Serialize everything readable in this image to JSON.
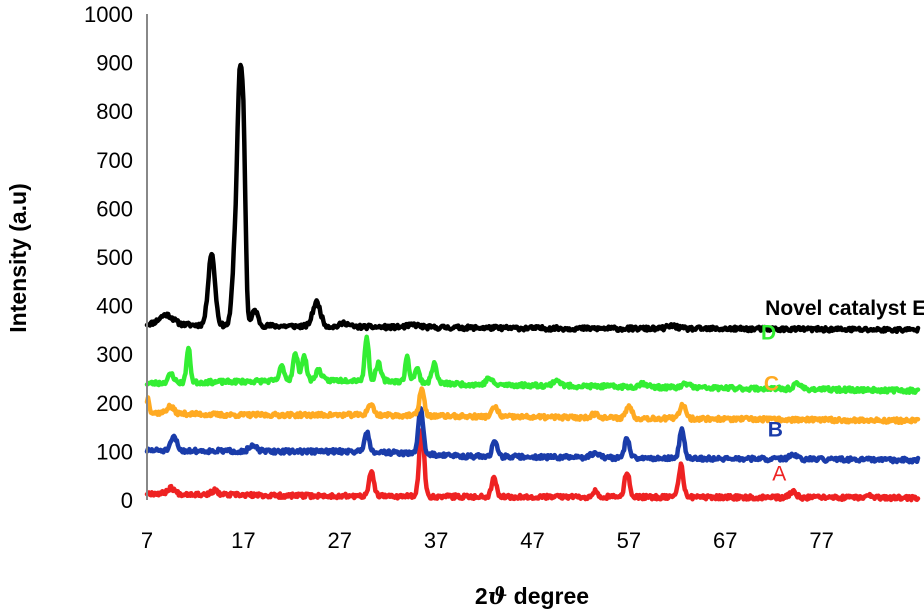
{
  "chart_data": {
    "type": "line",
    "xlabel_prefix": "2",
    "xlabel_symbol": "ϑ",
    "xlabel_suffix": " degree",
    "ylabel": "Intensity (a.u)",
    "xlim": [
      7,
      87
    ],
    "ylim": [
      0,
      1000
    ],
    "xticks": [
      7,
      17,
      27,
      37,
      47,
      57,
      67,
      77
    ],
    "yticks": [
      0,
      100,
      200,
      300,
      400,
      500,
      600,
      700,
      800,
      900,
      1000
    ],
    "grid": false,
    "series": [
      {
        "name": "Novel catalyst E",
        "color": "#000000",
        "label_bold": true,
        "label_at": [
          79.5,
          395
        ],
        "baseline": [
          [
            7,
            362
          ],
          [
            12,
            360
          ],
          [
            30,
            356
          ],
          [
            50,
            353
          ],
          [
            70,
            352
          ],
          [
            87,
            350
          ]
        ],
        "peaks": [
          [
            9.0,
            20,
            0.7
          ],
          [
            13.7,
            148,
            0.35
          ],
          [
            16.2,
            180,
            0.3
          ],
          [
            16.6,
            375,
            0.22
          ],
          [
            17.0,
            385,
            0.22
          ],
          [
            18.2,
            32,
            0.3
          ],
          [
            24.6,
            50,
            0.4
          ],
          [
            27.5,
            8,
            0.4
          ],
          [
            34.7,
            5,
            0.6
          ],
          [
            61.5,
            6,
            0.5
          ]
        ],
        "seed": 11
      },
      {
        "name": "D",
        "color": "#33ee33",
        "label_bold": true,
        "label_at": [
          71.5,
          345
        ],
        "baseline": [
          [
            7,
            240
          ],
          [
            20,
            245
          ],
          [
            30,
            247
          ],
          [
            40,
            238
          ],
          [
            60,
            232
          ],
          [
            87,
            225
          ]
        ],
        "peaks": [
          [
            9.5,
            18,
            0.3
          ],
          [
            11.3,
            70,
            0.2
          ],
          [
            21.0,
            30,
            0.25
          ],
          [
            22.4,
            55,
            0.25
          ],
          [
            23.3,
            50,
            0.25
          ],
          [
            24.8,
            22,
            0.3
          ],
          [
            29.8,
            90,
            0.2
          ],
          [
            31.0,
            35,
            0.25
          ],
          [
            34.0,
            50,
            0.2
          ],
          [
            35.0,
            28,
            0.25
          ],
          [
            36.8,
            40,
            0.25
          ],
          [
            42.5,
            14,
            0.3
          ],
          [
            49.5,
            12,
            0.35
          ],
          [
            58.5,
            8,
            0.4
          ],
          [
            63.0,
            8,
            0.4
          ],
          [
            74.5,
            10,
            0.4
          ]
        ],
        "seed": 23
      },
      {
        "name": "C",
        "color": "#ffaa22",
        "label_bold": true,
        "label_at": [
          71.8,
          240
        ],
        "baseline": [
          [
            7,
            180
          ],
          [
            15,
            175
          ],
          [
            30,
            175
          ],
          [
            40,
            172
          ],
          [
            60,
            168
          ],
          [
            87,
            163
          ]
        ],
        "peaks": [
          [
            7.1,
            30,
            0.15
          ],
          [
            9.4,
            14,
            0.35
          ],
          [
            30.2,
            22,
            0.3
          ],
          [
            35.5,
            55,
            0.25
          ],
          [
            43.1,
            20,
            0.3
          ],
          [
            53.5,
            8,
            0.4
          ],
          [
            57.0,
            25,
            0.3
          ],
          [
            62.6,
            30,
            0.3
          ]
        ],
        "seed": 37
      },
      {
        "name": "B",
        "color": "#1a3caa",
        "label_bold": true,
        "label_at": [
          72.2,
          145
        ],
        "baseline": [
          [
            7,
            102
          ],
          [
            20,
            100
          ],
          [
            30,
            100
          ],
          [
            40,
            90
          ],
          [
            60,
            86
          ],
          [
            87,
            82
          ]
        ],
        "peaks": [
          [
            9.8,
            28,
            0.3
          ],
          [
            18.0,
            10,
            0.4
          ],
          [
            29.8,
            40,
            0.25
          ],
          [
            35.4,
            95,
            0.25
          ],
          [
            43.1,
            35,
            0.25
          ],
          [
            53.5,
            10,
            0.4
          ],
          [
            56.8,
            40,
            0.25
          ],
          [
            62.5,
            60,
            0.25
          ],
          [
            74.0,
            8,
            0.4
          ]
        ],
        "seed": 51
      },
      {
        "name": "A",
        "color": "#ee2222",
        "label_bold": false,
        "label_at": [
          72.6,
          55
        ],
        "baseline": [
          [
            7,
            14
          ],
          [
            20,
            9
          ],
          [
            40,
            7
          ],
          [
            60,
            6
          ],
          [
            87,
            4
          ]
        ],
        "peaks": [
          [
            9.5,
            12,
            0.35
          ],
          [
            14.0,
            8,
            0.3
          ],
          [
            30.3,
            50,
            0.25
          ],
          [
            35.5,
            140,
            0.25
          ],
          [
            43.0,
            40,
            0.25
          ],
          [
            53.5,
            12,
            0.3
          ],
          [
            56.8,
            52,
            0.25
          ],
          [
            62.4,
            65,
            0.25
          ],
          [
            74.0,
            12,
            0.35
          ],
          [
            82.0,
            5,
            0.4
          ]
        ],
        "seed": 67
      }
    ]
  }
}
